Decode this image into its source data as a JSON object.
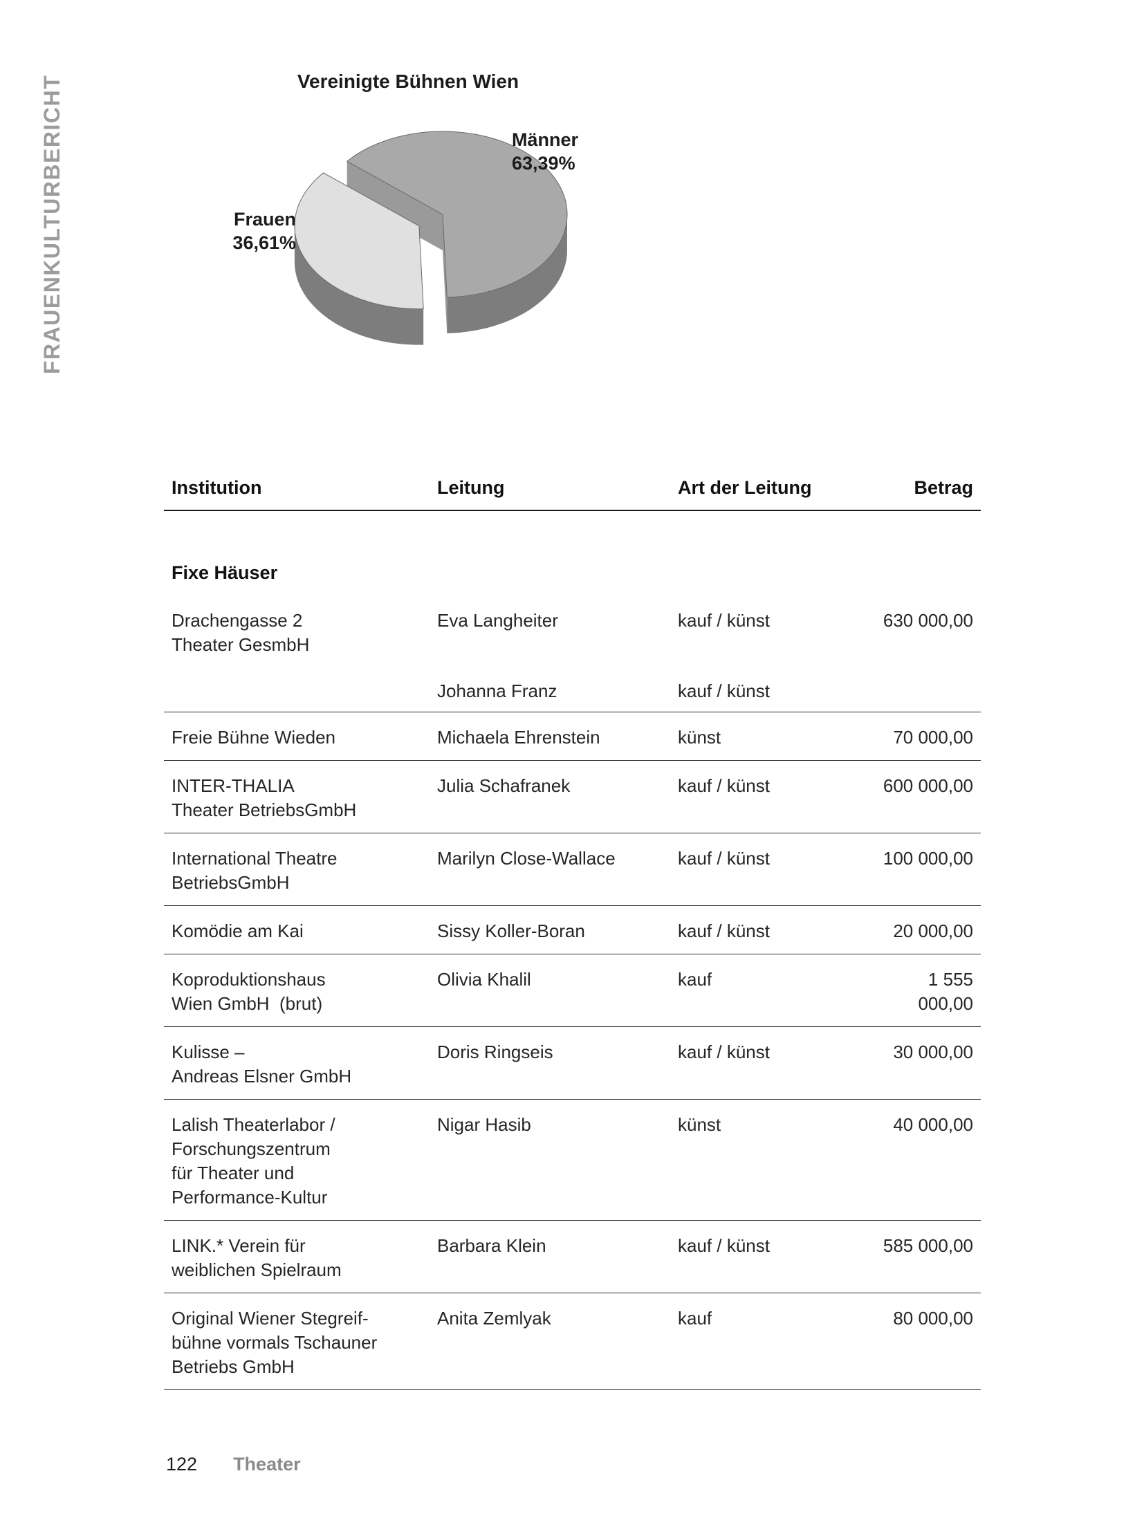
{
  "sidebar": {
    "vertical_text": "FRAUENKULTURBERICHT"
  },
  "chart_data": {
    "type": "pie",
    "style": "3d-exploded",
    "title": "Vereinigte Bühnen Wien",
    "start_angle": 88,
    "depth": 52,
    "explode_distance": 38,
    "top_stroke_color": "#696969",
    "wall_color": "#9a9a9a",
    "slices": [
      {
        "label": "Männer",
        "value": 63.39,
        "display": "63,39%",
        "color": "#a9a9a9",
        "side_color": "#7d7d7d",
        "exploded": false
      },
      {
        "label": "Frauen",
        "value": 36.61,
        "display": "36,61%",
        "color": "#e0e0e0",
        "side_color": "#7d7d7d",
        "exploded": true
      }
    ],
    "legend_position": "outside-labels"
  },
  "table": {
    "columns": [
      "Institution",
      "Leitung",
      "Art der Leitung",
      "Betrag"
    ],
    "section": "Fixe Häuser",
    "rows": [
      {
        "style": "first",
        "institution": [
          "Drachengasse 2",
          "Theater GesmbH"
        ],
        "leitung": "Eva Langheiter",
        "art": "kauf / künst",
        "betrag": "630 000,00"
      },
      {
        "style": "subrow",
        "institution": [],
        "leitung": "Johanna Franz",
        "art": "kauf / künst",
        "betrag": ""
      },
      {
        "style": "normal",
        "institution": [
          "Freie Bühne Wieden"
        ],
        "leitung": "Michaela Ehrenstein",
        "art": "künst",
        "betrag": "70 000,00"
      },
      {
        "style": "normal",
        "institution": [
          "INTER-THALIA",
          "Theater BetriebsGmbH"
        ],
        "leitung": "Julia Schafranek",
        "art": "kauf / künst",
        "betrag": "600 000,00"
      },
      {
        "style": "normal",
        "institution": [
          "International Theatre",
          "BetriebsGmbH"
        ],
        "leitung": "Marilyn Close-Wallace",
        "art": "kauf / künst",
        "betrag": "100 000,00"
      },
      {
        "style": "normal",
        "institution": [
          "Komödie am Kai"
        ],
        "leitung": "Sissy Koller-Boran",
        "art": "kauf / künst",
        "betrag": "20 000,00"
      },
      {
        "style": "normal",
        "institution": [
          "Koproduktionshaus",
          "Wien GmbH  (brut)"
        ],
        "leitung": "Olivia Khalil",
        "art": "kauf",
        "betrag": "1 555 000,00"
      },
      {
        "style": "normal",
        "institution": [
          "Kulisse –",
          "Andreas Elsner GmbH"
        ],
        "leitung": "Doris Ringseis",
        "art": "kauf / künst",
        "betrag": "30 000,00"
      },
      {
        "style": "normal",
        "institution": [
          "Lalish Theaterlabor /",
          "Forschungszentrum",
          "für Theater und",
          "Performance-Kultur"
        ],
        "leitung": "Nigar Hasib",
        "art": "künst",
        "betrag": "40 000,00"
      },
      {
        "style": "normal",
        "institution": [
          "LINK.* Verein für",
          "weiblichen Spielraum"
        ],
        "leitung": "Barbara Klein",
        "art": "kauf / künst",
        "betrag": "585 000,00"
      },
      {
        "style": "normal",
        "institution": [
          "Original Wiener Stegreif-",
          "bühne vormals Tschauner",
          "Betriebs GmbH"
        ],
        "leitung": "Anita Zemlyak",
        "art": "kauf",
        "betrag": "80 000,00"
      }
    ]
  },
  "footer": {
    "page_number": "122",
    "section": "Theater"
  }
}
